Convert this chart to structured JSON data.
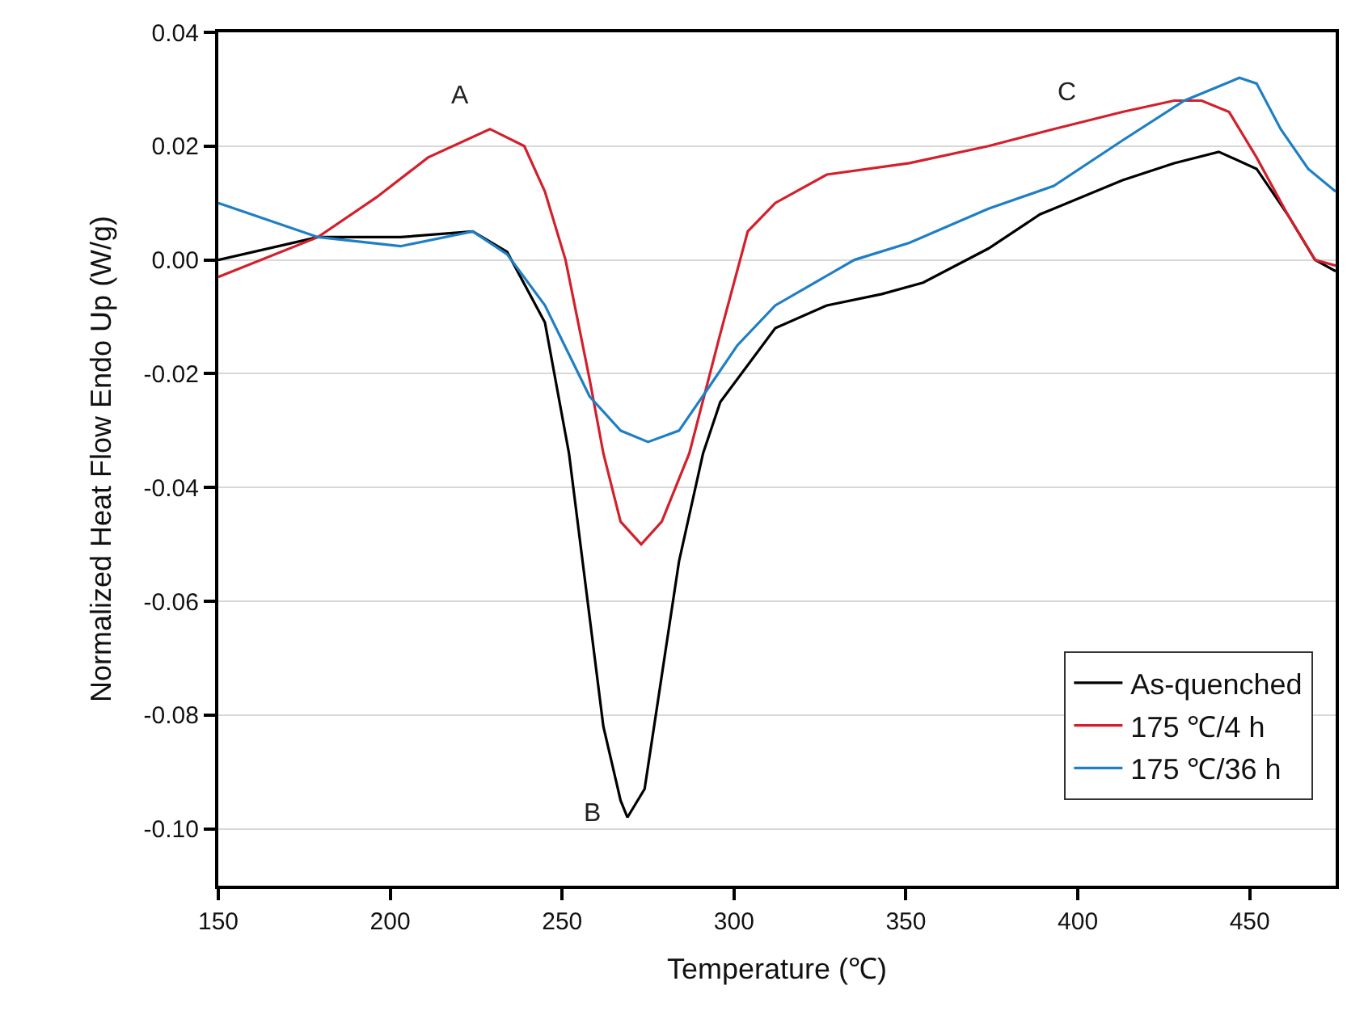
{
  "chart_data": {
    "type": "line",
    "xlabel": "Temperature (℃)",
    "ylabel": "Normalized Heat Flow Endo Up (W/g)",
    "xlim": [
      150,
      475
    ],
    "xticks": [
      150,
      200,
      250,
      300,
      350,
      400,
      450
    ],
    "ylim": [
      -0.11,
      0.04
    ],
    "yticks": [
      {
        "value": 0.04,
        "label": "0.04"
      },
      {
        "value": 0.02,
        "label": "0.02"
      },
      {
        "value": 0,
        "label": "0.00"
      },
      {
        "value": -0.02,
        "label": "-0.02"
      },
      {
        "value": -0.04,
        "label": "-0.04"
      },
      {
        "value": -0.06,
        "label": "-0.06"
      },
      {
        "value": -0.08,
        "label": "-0.08"
      },
      {
        "value": -0.1,
        "label": "-0.10"
      }
    ],
    "grid": "y",
    "legend": "bottom right",
    "line_style": "solid",
    "marker": "none",
    "annotations": [
      {
        "text": "A",
        "x": 229,
        "y": 0.023
      },
      {
        "text": "B",
        "x": 269,
        "y": -0.098
      },
      {
        "text": "C",
        "x": 393,
        "y": 0.023
      }
    ],
    "series": [
      {
        "name": "As-quenched",
        "color": "#000000",
        "x": [
          150,
          179,
          203,
          224,
          234,
          245,
          252,
          257,
          262,
          267,
          269,
          274,
          278,
          284,
          291,
          296,
          312,
          327,
          343,
          355,
          374,
          389,
          413,
          428,
          441,
          452,
          461,
          469,
          475
        ],
        "values": [
          0.0,
          0.004,
          0.004,
          0.005,
          0.0014,
          -0.011,
          -0.034,
          -0.058,
          -0.082,
          -0.095,
          -0.098,
          -0.093,
          -0.077,
          -0.053,
          -0.034,
          -0.025,
          -0.012,
          -0.008,
          -0.006,
          -0.004,
          0.002,
          0.008,
          0.014,
          0.017,
          0.019,
          0.016,
          0.008,
          0.0,
          -0.002
        ]
      },
      {
        "name": "175 ℃/4 h",
        "color": "#d2202c",
        "x": [
          150,
          179,
          196,
          211,
          229,
          239,
          245,
          251,
          258,
          262,
          267,
          273,
          279,
          287,
          296,
          304,
          312,
          327,
          351,
          374,
          393,
          413,
          428,
          436,
          444,
          452,
          461,
          469,
          475
        ],
        "values": [
          -0.003,
          0.004,
          0.011,
          0.018,
          0.023,
          0.02,
          0.012,
          0.0,
          -0.021,
          -0.034,
          -0.046,
          -0.05,
          -0.046,
          -0.034,
          -0.013,
          0.005,
          0.01,
          0.015,
          0.017,
          0.02,
          0.023,
          0.026,
          0.028,
          0.028,
          0.026,
          0.018,
          0.008,
          0.0,
          -0.001
        ]
      },
      {
        "name": "175 ℃/36 h",
        "color": "#1f7fc4",
        "x": [
          150,
          179,
          203,
          224,
          234,
          245,
          258,
          267,
          275,
          284,
          292,
          301,
          312,
          335,
          351,
          374,
          393,
          413,
          431,
          447,
          452,
          459,
          467,
          475
        ],
        "values": [
          0.01,
          0.004,
          0.0024,
          0.005,
          0.001,
          -0.008,
          -0.024,
          -0.03,
          -0.032,
          -0.03,
          -0.023,
          -0.015,
          -0.008,
          0.0,
          0.003,
          0.009,
          0.013,
          0.021,
          0.028,
          0.032,
          0.031,
          0.023,
          0.016,
          0.012
        ]
      }
    ]
  }
}
